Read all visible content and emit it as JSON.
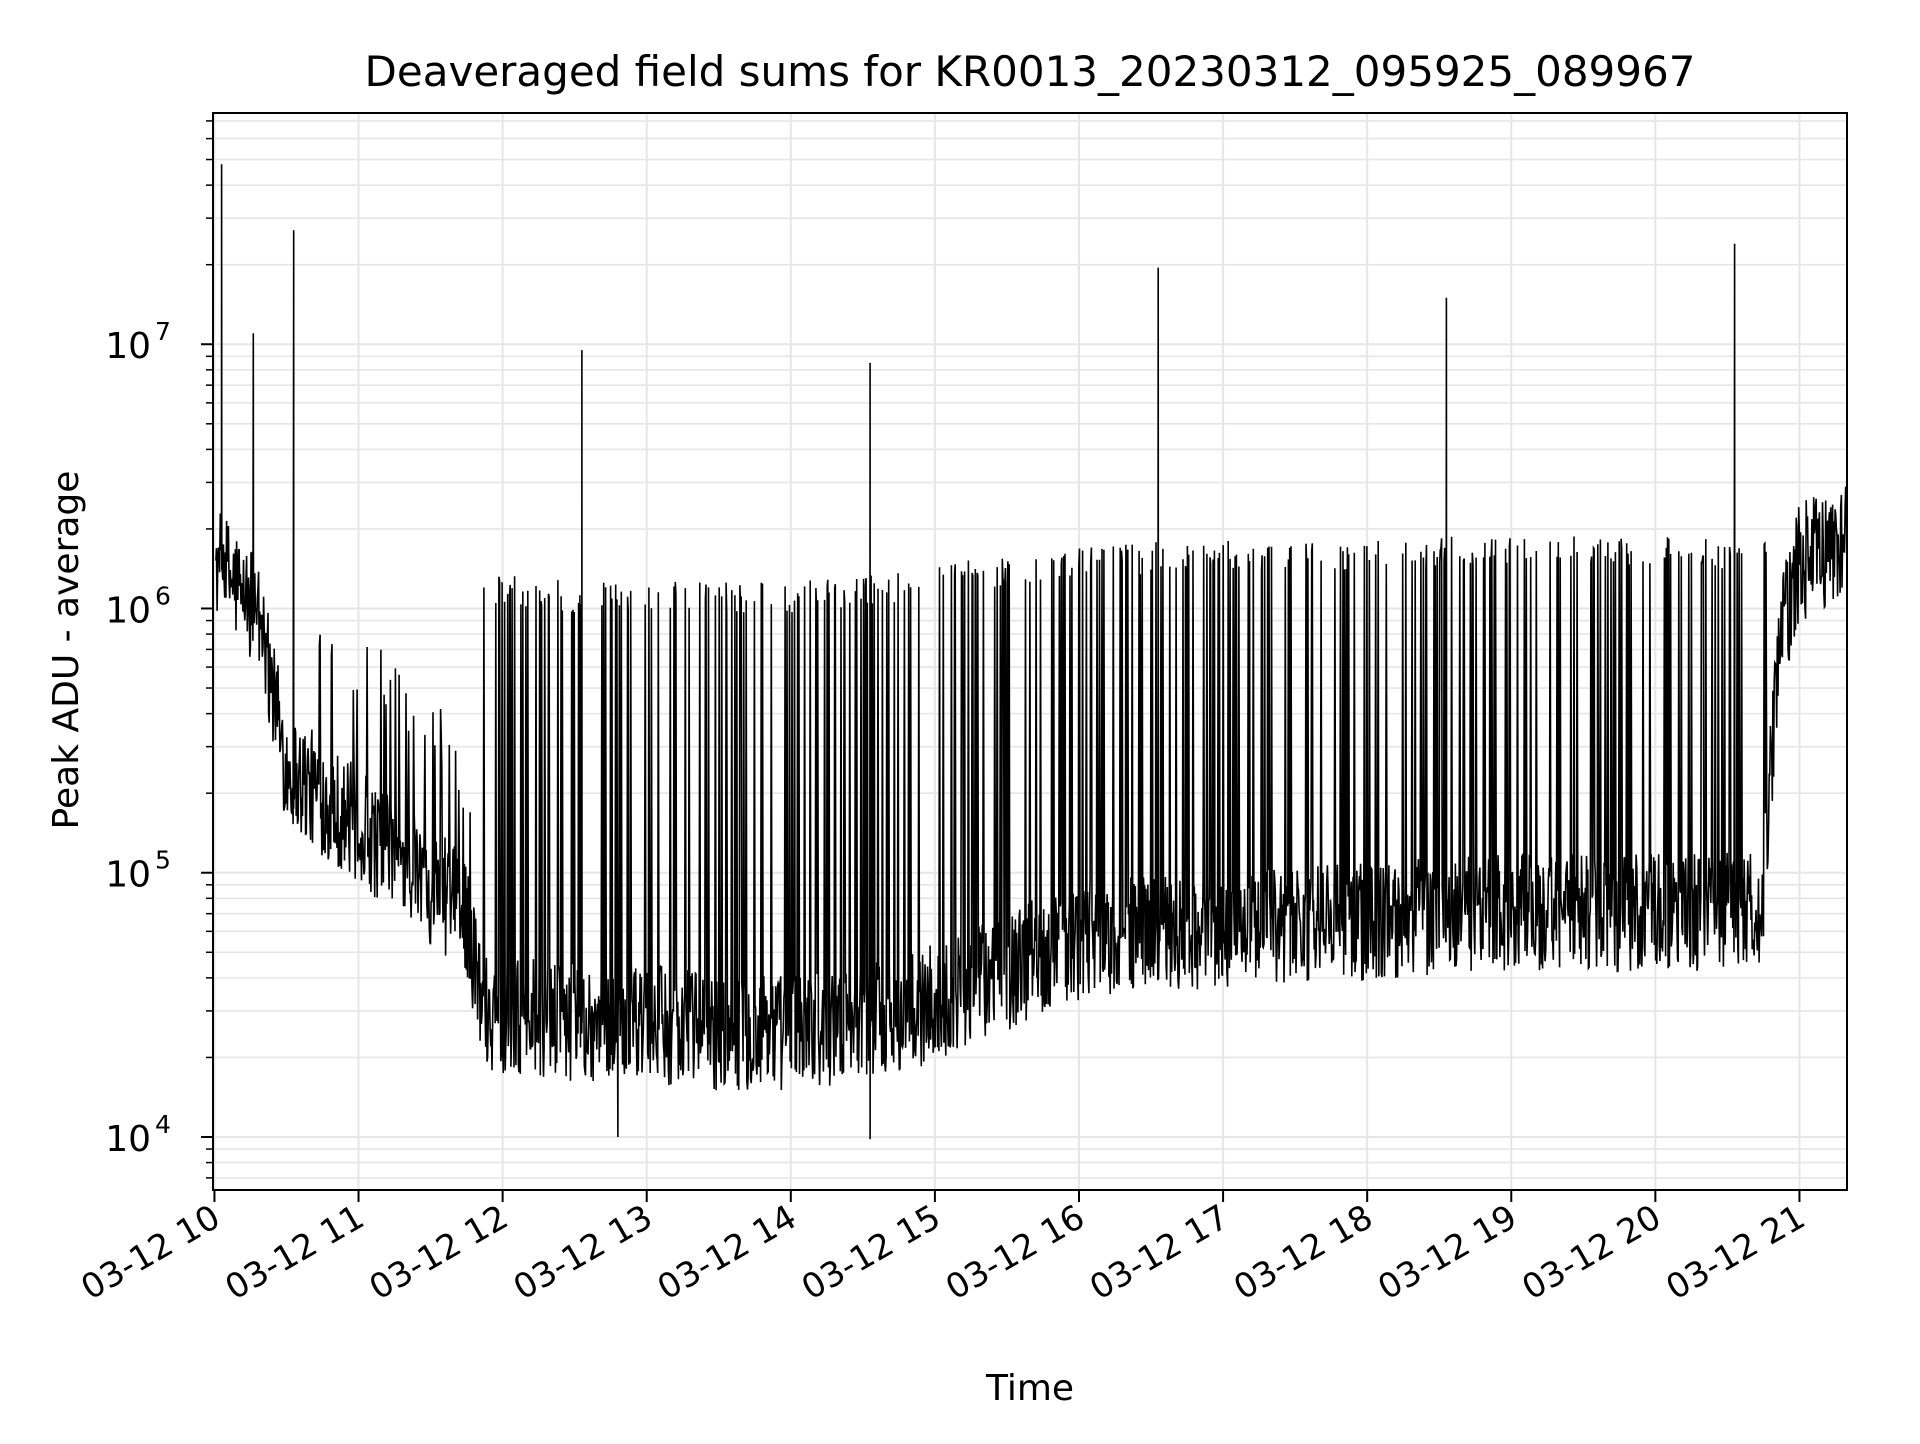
{
  "chart_data": {
    "type": "line",
    "title": "Deaveraged field sums for KR0013_20230312_095925_089967",
    "xlabel": "Time",
    "ylabel": "Peak ADU - average",
    "yscale": "log",
    "ylim": [
      6300,
      75000000
    ],
    "xlim": [
      "03-12 09:59:25",
      "03-12 21:20:00"
    ],
    "x_tick_labels": [
      "03-12 10",
      "03-12 11",
      "03-12 12",
      "03-12 13",
      "03-12 14",
      "03-12 15",
      "03-12 16",
      "03-12 17",
      "03-12 18",
      "03-12 19",
      "03-12 20",
      "03-12 21"
    ],
    "x_tick_hours": [
      10,
      11,
      12,
      13,
      14,
      15,
      16,
      17,
      18,
      19,
      20,
      21
    ],
    "y_ticks": [
      {
        "value": 10000,
        "base": "10",
        "exp": "4"
      },
      {
        "value": 100000,
        "base": "10",
        "exp": "5"
      },
      {
        "value": 1000000,
        "base": "10",
        "exp": "6"
      },
      {
        "value": 10000000,
        "base": "10",
        "exp": "7"
      }
    ],
    "grid": true,
    "line_color": "#000000",
    "grid_color": "#e6e6e6",
    "baseline_envelope": {
      "comment": "approximate lower baseline (hour, value)",
      "points": [
        [
          10.0,
          1500000
        ],
        [
          10.3,
          1000000
        ],
        [
          10.5,
          250000
        ],
        [
          11.0,
          150000
        ],
        [
          11.5,
          90000
        ],
        [
          11.75,
          70000
        ],
        [
          11.85,
          30000
        ],
        [
          12.5,
          27000
        ],
        [
          13.0,
          27000
        ],
        [
          13.5,
          25000
        ],
        [
          14.0,
          25000
        ],
        [
          14.5,
          27000
        ],
        [
          15.0,
          32000
        ],
        [
          15.5,
          42000
        ],
        [
          15.75,
          50000
        ],
        [
          16.0,
          55000
        ],
        [
          16.5,
          60000
        ],
        [
          17.0,
          60000
        ],
        [
          17.5,
          65000
        ],
        [
          18.0,
          65000
        ],
        [
          18.5,
          68000
        ],
        [
          19.0,
          70000
        ],
        [
          19.5,
          70000
        ],
        [
          20.0,
          70000
        ],
        [
          20.5,
          72000
        ],
        [
          20.75,
          75000
        ],
        [
          20.85,
          700000
        ],
        [
          21.0,
          1500000
        ],
        [
          21.33,
          1800000
        ]
      ]
    },
    "upper_envelope": {
      "comment": "approximate top of periodic excursions (hour, value)",
      "points": [
        [
          10.0,
          1600000
        ],
        [
          10.5,
          800000
        ],
        [
          11.0,
          700000
        ],
        [
          11.5,
          400000
        ],
        [
          11.8,
          200000
        ],
        [
          11.85,
          1200000
        ],
        [
          12.5,
          1100000
        ],
        [
          13.0,
          1100000
        ],
        [
          13.5,
          1100000
        ],
        [
          14.0,
          1100000
        ],
        [
          14.5,
          1150000
        ],
        [
          15.0,
          1300000
        ],
        [
          15.5,
          1400000
        ],
        [
          16.0,
          1500000
        ],
        [
          16.5,
          1550000
        ],
        [
          17.0,
          1600000
        ],
        [
          18.0,
          1600000
        ],
        [
          19.0,
          1650000
        ],
        [
          20.0,
          1650000
        ],
        [
          20.75,
          1600000
        ]
      ]
    },
    "spikes": [
      {
        "hour": 10.05,
        "value": 48000000
      },
      {
        "hour": 10.27,
        "value": 11000000
      },
      {
        "hour": 10.55,
        "value": 27000000
      },
      {
        "hour": 12.55,
        "value": 9500000
      },
      {
        "hour": 14.55,
        "value": 8500000
      },
      {
        "hour": 16.55,
        "value": 19500000
      },
      {
        "hour": 18.55,
        "value": 15000000
      },
      {
        "hour": 20.55,
        "value": 24000000
      }
    ],
    "minima": [
      {
        "hour": 12.8,
        "value": 10000
      },
      {
        "hour": 14.55,
        "value": 9800
      }
    ]
  }
}
